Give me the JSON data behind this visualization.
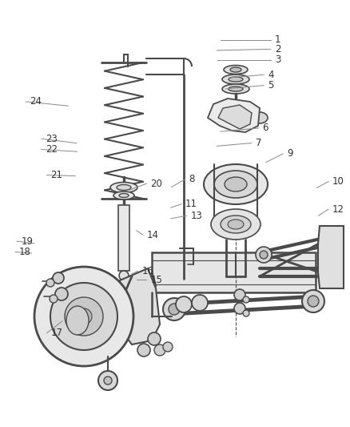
{
  "bg_color": "#ffffff",
  "line_color": "#4a4a4a",
  "text_color": "#333333",
  "leader_color": "#888888",
  "fig_width": 4.38,
  "fig_height": 5.33,
  "dpi": 100,
  "label_configs": [
    [
      1,
      0.785,
      0.907,
      0.63,
      0.907
    ],
    [
      2,
      0.785,
      0.885,
      0.62,
      0.882
    ],
    [
      3,
      0.785,
      0.86,
      0.62,
      0.86
    ],
    [
      4,
      0.765,
      0.825,
      0.655,
      0.818
    ],
    [
      5,
      0.765,
      0.8,
      0.645,
      0.792
    ],
    [
      6,
      0.75,
      0.7,
      0.63,
      0.692
    ],
    [
      7,
      0.73,
      0.665,
      0.62,
      0.658
    ],
    [
      8,
      0.54,
      0.58,
      0.49,
      0.562
    ],
    [
      9,
      0.82,
      0.64,
      0.76,
      0.62
    ],
    [
      10,
      0.95,
      0.575,
      0.905,
      0.56
    ],
    [
      11,
      0.53,
      0.522,
      0.488,
      0.514
    ],
    [
      12,
      0.95,
      0.51,
      0.91,
      0.495
    ],
    [
      13,
      0.545,
      0.495,
      0.488,
      0.488
    ],
    [
      14,
      0.42,
      0.45,
      0.39,
      0.46
    ],
    [
      15,
      0.43,
      0.345,
      0.39,
      0.345
    ],
    [
      16,
      0.405,
      0.365,
      0.375,
      0.358
    ],
    [
      17,
      0.145,
      0.22,
      0.178,
      0.248
    ],
    [
      18,
      0.055,
      0.41,
      0.09,
      0.407
    ],
    [
      19,
      0.06,
      0.435,
      0.098,
      0.43
    ],
    [
      20,
      0.43,
      0.57,
      0.37,
      0.555
    ],
    [
      21,
      0.145,
      0.59,
      0.215,
      0.588
    ],
    [
      22,
      0.13,
      0.65,
      0.22,
      0.645
    ],
    [
      23,
      0.13,
      0.675,
      0.218,
      0.665
    ],
    [
      24,
      0.085,
      0.762,
      0.195,
      0.752
    ]
  ]
}
